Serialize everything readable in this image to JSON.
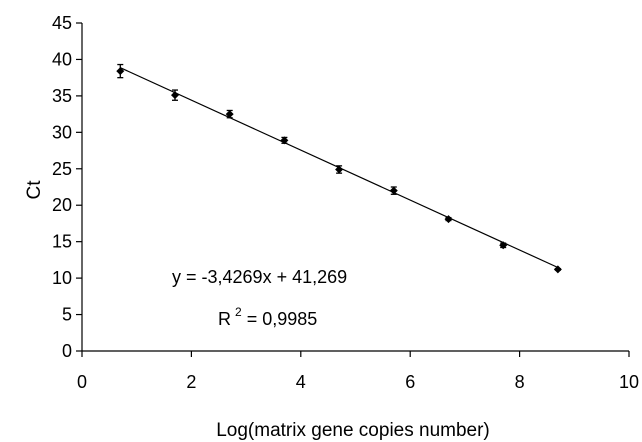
{
  "chart_data": {
    "type": "scatter",
    "title": "",
    "xlabel": "Log(matrix gene copies number)",
    "ylabel": "Ct",
    "xlim": [
      0,
      10
    ],
    "ylim": [
      0,
      45
    ],
    "x_ticks": [
      "0",
      "2",
      "4",
      "6",
      "8",
      "10"
    ],
    "y_ticks": [
      "0",
      "5",
      "10",
      "15",
      "20",
      "25",
      "30",
      "35",
      "40",
      "45"
    ],
    "grid": false,
    "legend": "none",
    "series": [
      {
        "marker": "diamond",
        "points": [
          {
            "x": 0.7,
            "y": 38.4,
            "err": 0.9
          },
          {
            "x": 1.7,
            "y": 35.1,
            "err": 0.7
          },
          {
            "x": 2.7,
            "y": 32.5,
            "err": 0.5
          },
          {
            "x": 3.7,
            "y": 28.9,
            "err": 0.4
          },
          {
            "x": 4.7,
            "y": 24.9,
            "err": 0.5
          },
          {
            "x": 5.7,
            "y": 22.0,
            "err": 0.5
          },
          {
            "x": 6.7,
            "y": 18.1,
            "err": 0.2
          },
          {
            "x": 7.7,
            "y": 14.5,
            "err": 0.3
          },
          {
            "x": 8.7,
            "y": 11.2,
            "err": 0.1
          }
        ]
      }
    ],
    "trendline": {
      "slope": -3.4269,
      "intercept": 41.269,
      "x_range": [
        0.7,
        8.7
      ],
      "equation_text": "y = -3,4269x + 41,269",
      "r2_prefix": "R",
      "r2_sup": "2",
      "r2_value": " = 0,9985"
    }
  }
}
